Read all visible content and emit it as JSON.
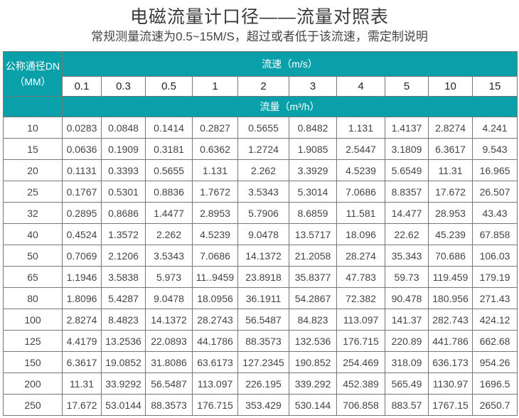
{
  "title": "电磁流量计口径——流量对照表",
  "subtitle": "常规测量流速为0.5~15M/S，超过或者低于该流速，需定制说明",
  "table": {
    "dn_header_line1": "公称通径DN",
    "dn_header_line2": "（MM）",
    "velocity_header": "流速（m/s）",
    "flow_header": "流量（m³/h）",
    "velocities": [
      "0.1",
      "0.3",
      "0.5",
      "1",
      "2",
      "3",
      "4",
      "5",
      "10",
      "15"
    ],
    "header_color": "#0aa0aa",
    "rows": [
      {
        "dn": "10",
        "values": [
          "0.0283",
          "0.0848",
          "0.1414",
          "0.2827",
          "0.5655",
          "0.8482",
          "1.131",
          "1.4137",
          "2.8274",
          "4.241"
        ]
      },
      {
        "dn": "15",
        "values": [
          "0.0636",
          "0.1909",
          "0.3181",
          "0.6362",
          "1.2724",
          "1.9085",
          "2.5447",
          "3.1809",
          "6.3617",
          "9.543"
        ]
      },
      {
        "dn": "20",
        "values": [
          "0.1131",
          "0.3393",
          "0.5655",
          "1.131",
          "2.262",
          "3.3929",
          "4.5239",
          "5.6549",
          "11.31",
          "16.965"
        ]
      },
      {
        "dn": "25",
        "values": [
          "0.1767",
          "0.5301",
          "0.8836",
          "1.7672",
          "3.5343",
          "5.3014",
          "7.0686",
          "8.8357",
          "17.672",
          "26.507"
        ]
      },
      {
        "dn": "32",
        "values": [
          "0.2895",
          "0.8686",
          "1.4477",
          "2.8953",
          "5.7906",
          "8.6859",
          "11.581",
          "14.477",
          "28.953",
          "43.43"
        ]
      },
      {
        "dn": "40",
        "values": [
          "0.4524",
          "1.3572",
          "2.262",
          "4.5239",
          "9.0478",
          "13.5717",
          "18.096",
          "22.62",
          "45.239",
          "67.858"
        ]
      },
      {
        "dn": "50",
        "values": [
          "0.7069",
          "2.1206",
          "3.5343",
          "7.0686",
          "14.1372",
          "21.2058",
          "28.274",
          "35.343",
          "70.686",
          "106.03"
        ]
      },
      {
        "dn": "65",
        "values": [
          "1.1946",
          "3.5838",
          "5.973",
          "11..9459",
          "23.8918",
          "35.8377",
          "47.783",
          "59.73",
          "119.459",
          "179.19"
        ]
      },
      {
        "dn": "80",
        "values": [
          "1.8096",
          "5.4287",
          "9.0478",
          "18.0956",
          "36.1911",
          "54.2867",
          "72.382",
          "90.478",
          "180.956",
          "271.43"
        ]
      },
      {
        "dn": "100",
        "values": [
          "2.8274",
          "8.4823",
          "14.1372",
          "28.2743",
          "56.5487",
          "84.823",
          "113.097",
          "141.37",
          "282.743",
          "424.12"
        ]
      },
      {
        "dn": "125",
        "values": [
          "4.4179",
          "13.2536",
          "22.0893",
          "44.1786",
          "88.3573",
          "132.536",
          "176.715",
          "220.89",
          "441.786",
          "662.68"
        ]
      },
      {
        "dn": "150",
        "values": [
          "6.3617",
          "19.0852",
          "31.8086",
          "63.6173",
          "127.2345",
          "190.852",
          "254.469",
          "318.09",
          "636.173",
          "954.26"
        ]
      },
      {
        "dn": "200",
        "values": [
          "11.31",
          "33.9292",
          "56.5487",
          "113.097",
          "226.195",
          "339.292",
          "452.389",
          "565.49",
          "1130.97",
          "1696.5"
        ]
      },
      {
        "dn": "250",
        "values": [
          "17.672",
          "53.0144",
          "88.3573",
          "176.715",
          "353.429",
          "530.144",
          "706.858",
          "883.57",
          "1767.15",
          "2650.7"
        ]
      }
    ]
  }
}
